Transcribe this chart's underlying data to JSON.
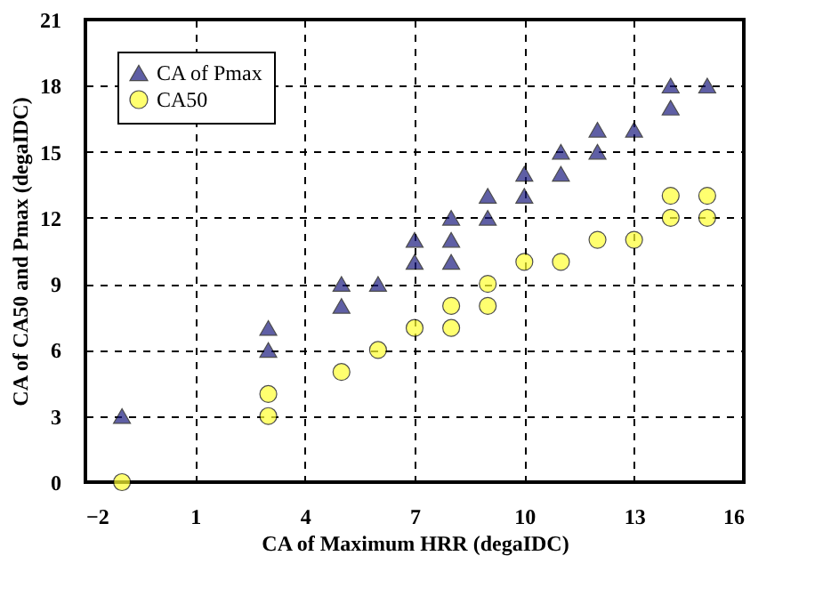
{
  "chart_data": {
    "type": "scatter",
    "xlabel": "CA of Maximum HRR (degaIDC)",
    "ylabel": "CA of CA50 and Pmax (degaIDC)",
    "xlim": [
      -2,
      16
    ],
    "xticks": [
      -2,
      1,
      4,
      7,
      10,
      13,
      16
    ],
    "ylim": [
      0,
      21
    ],
    "yticks": [
      0,
      3,
      6,
      9,
      12,
      15,
      18,
      21
    ],
    "grid": true,
    "legend": "top left",
    "series": [
      {
        "name": "CA of Pmax",
        "color": "#1c1c80",
        "marker": "triangle",
        "x": [
          -1,
          3,
          3,
          5,
          5,
          6,
          7,
          7,
          8,
          8,
          8,
          9,
          9,
          10,
          10,
          11,
          11,
          12,
          12,
          13,
          14,
          14,
          15
        ],
        "values": [
          3,
          7,
          6,
          9,
          8,
          9,
          11,
          10,
          12,
          11,
          10,
          13,
          12,
          14,
          13,
          15,
          14,
          16,
          15,
          16,
          18,
          17,
          18
        ]
      },
      {
        "name": "CA50",
        "color": "#ffff33",
        "marker": "circle",
        "x": [
          -1,
          3,
          3,
          5,
          6,
          7,
          8,
          8,
          9,
          9,
          10,
          11,
          12,
          13,
          14,
          14,
          15,
          15
        ],
        "values": [
          0,
          4,
          3,
          5,
          6,
          7,
          8,
          7,
          9,
          8,
          10,
          10,
          11,
          11,
          13,
          12,
          13,
          12
        ]
      }
    ]
  }
}
